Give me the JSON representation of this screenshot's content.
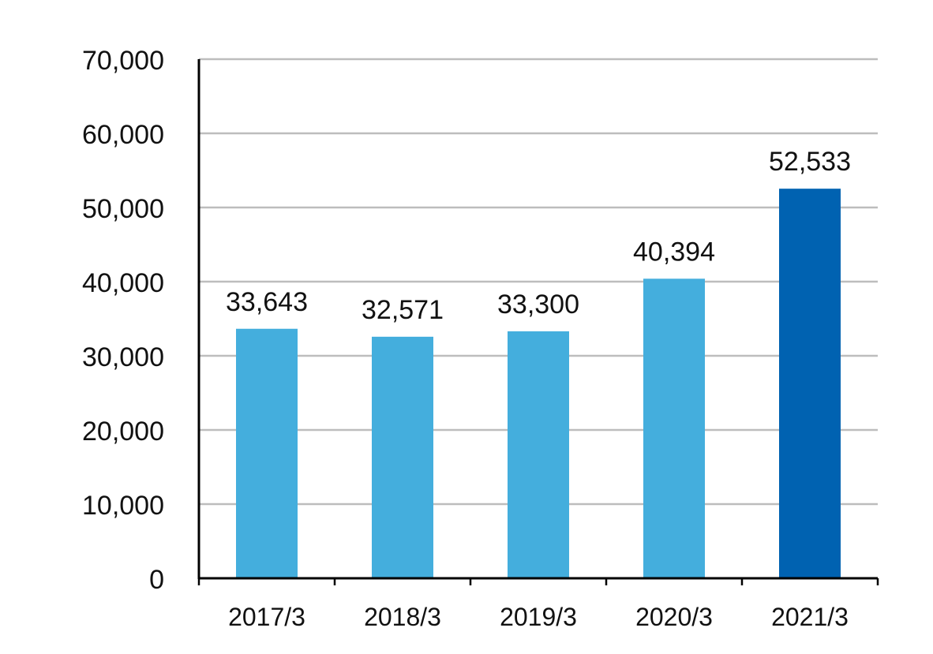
{
  "chart_data": {
    "type": "bar",
    "categories": [
      "2017/3",
      "2018/3",
      "2019/3",
      "2020/3",
      "2021/3"
    ],
    "values": [
      33643,
      32571,
      33300,
      40394,
      52533
    ],
    "value_labels": [
      "33,643",
      "32,571",
      "33,300",
      "40,394",
      "52,533"
    ],
    "y_ticks": [
      0,
      10000,
      20000,
      30000,
      40000,
      50000,
      60000,
      70000
    ],
    "y_tick_labels": [
      "0",
      "10,000",
      "20,000",
      "30,000",
      "40,000",
      "50,000",
      "60,000",
      "70,000"
    ],
    "ylim": [
      0,
      70000
    ],
    "grid": true,
    "legend": "none",
    "colors": {
      "bar": "#44aedd",
      "highlight_bar": "#0062b1",
      "grid": "#bdbdbd",
      "axis": "#000000",
      "text": "#111111"
    },
    "highlight_index": 4
  }
}
